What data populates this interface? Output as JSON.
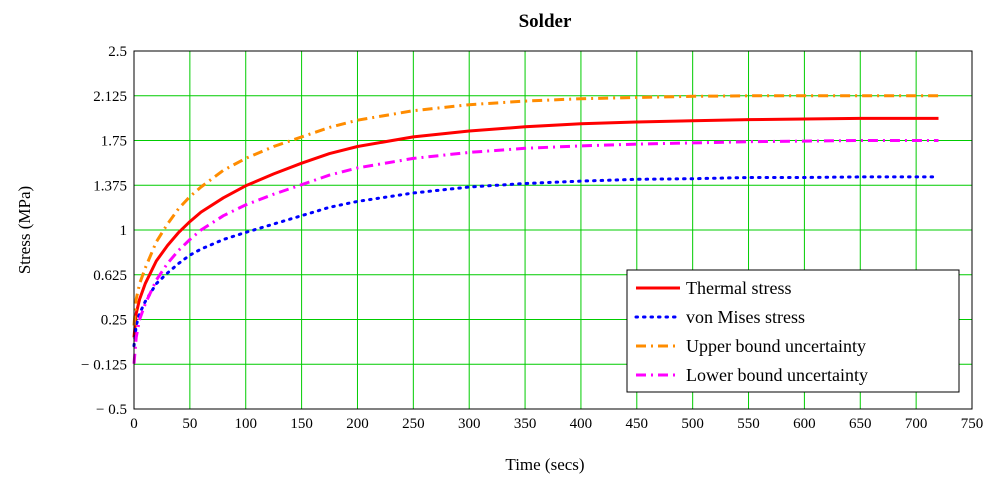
{
  "chart_data": {
    "type": "line",
    "title": "Solder",
    "xlabel": "Time (secs)",
    "ylabel": "Stress (MPa)",
    "xlim": [
      0,
      750
    ],
    "ylim": [
      -0.5,
      2.5
    ],
    "x_ticks": [
      0,
      50,
      100,
      150,
      200,
      250,
      300,
      350,
      400,
      450,
      500,
      550,
      600,
      650,
      700,
      750
    ],
    "x_tick_labels": [
      "0",
      "50",
      "100",
      "150",
      "200",
      "250",
      "300",
      "350",
      "400",
      "450",
      "500",
      "550",
      "600",
      "650",
      "700",
      "750"
    ],
    "y_ticks": [
      -0.5,
      -0.125,
      0.25,
      0.625,
      1,
      1.375,
      1.75,
      2.125,
      2.5
    ],
    "y_tick_labels": [
      "− 0.5",
      "− 0.125",
      "0.25",
      "0.625",
      "1",
      "1.375",
      "1.75",
      "2.125",
      "2.5"
    ],
    "grid": true,
    "legend_position": "bottom-right",
    "series": [
      {
        "name": "Thermal stress",
        "color": "#ff0000",
        "style": "solid",
        "x": [
          0,
          2,
          5,
          10,
          20,
          30,
          40,
          50,
          60,
          80,
          100,
          125,
          150,
          175,
          200,
          250,
          300,
          350,
          400,
          450,
          500,
          550,
          600,
          650,
          700,
          720
        ],
        "y": [
          0.1,
          0.3,
          0.42,
          0.55,
          0.74,
          0.87,
          0.98,
          1.07,
          1.15,
          1.27,
          1.37,
          1.47,
          1.56,
          1.64,
          1.7,
          1.78,
          1.83,
          1.865,
          1.89,
          1.905,
          1.915,
          1.925,
          1.93,
          1.935,
          1.935,
          1.935
        ]
      },
      {
        "name": "von Mises stress",
        "color": "#0000ff",
        "style": "dotted",
        "x": [
          0,
          2,
          5,
          10,
          20,
          30,
          40,
          50,
          60,
          80,
          100,
          125,
          150,
          175,
          200,
          250,
          300,
          350,
          400,
          450,
          500,
          550,
          600,
          650,
          700,
          720
        ],
        "y": [
          0.03,
          0.2,
          0.3,
          0.4,
          0.55,
          0.64,
          0.72,
          0.79,
          0.84,
          0.92,
          0.98,
          1.05,
          1.12,
          1.19,
          1.24,
          1.31,
          1.36,
          1.39,
          1.41,
          1.425,
          1.43,
          1.44,
          1.44,
          1.445,
          1.445,
          1.445
        ]
      },
      {
        "name": "Upper bound uncertainty",
        "color": "#ff8c00",
        "style": "dashdot",
        "x": [
          0,
          2,
          5,
          10,
          20,
          30,
          40,
          50,
          60,
          80,
          100,
          125,
          150,
          175,
          200,
          250,
          300,
          350,
          400,
          450,
          500,
          550,
          600,
          650,
          700,
          720
        ],
        "y": [
          0.2,
          0.42,
          0.55,
          0.68,
          0.9,
          1.05,
          1.18,
          1.28,
          1.36,
          1.5,
          1.6,
          1.7,
          1.78,
          1.86,
          1.92,
          2.0,
          2.05,
          2.08,
          2.1,
          2.11,
          2.12,
          2.125,
          2.125,
          2.125,
          2.125,
          2.125
        ]
      },
      {
        "name": "Lower bound uncertainty",
        "color": "#ff00ff",
        "style": "dashdot",
        "x": [
          0,
          2,
          5,
          10,
          20,
          30,
          40,
          50,
          60,
          80,
          100,
          125,
          150,
          175,
          200,
          250,
          300,
          350,
          400,
          450,
          500,
          550,
          600,
          650,
          700,
          720
        ],
        "y": [
          -0.12,
          0.1,
          0.25,
          0.38,
          0.58,
          0.72,
          0.83,
          0.92,
          1.0,
          1.12,
          1.21,
          1.3,
          1.38,
          1.46,
          1.52,
          1.6,
          1.65,
          1.685,
          1.705,
          1.72,
          1.73,
          1.74,
          1.745,
          1.75,
          1.75,
          1.75
        ]
      }
    ]
  },
  "colors": {
    "grid": "#00cc00",
    "frame": "#000000",
    "background": "#ffffff"
  }
}
